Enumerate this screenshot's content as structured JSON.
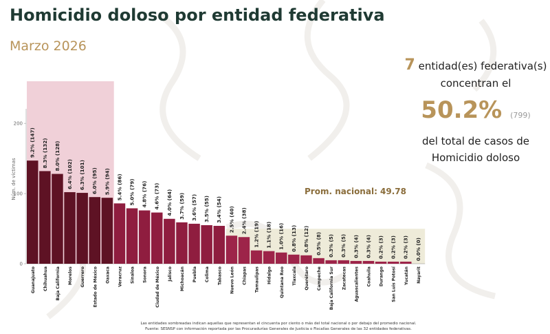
{
  "header": {
    "title": "Homicidio doloso por entidad federativa",
    "subtitle": "Marzo 2026"
  },
  "summary": {
    "count": "7",
    "count_text": "entidad(es) federativa(s)",
    "concentrate_text": "concentran el",
    "percent": "50.2%",
    "percent_cases": "(799)",
    "total_text": "del total de casos de",
    "crime_text": "Homicidio doloso"
  },
  "footnote": {
    "line1": "Las entidades sombreadas indican aquellas que representan el cincuenta por ciento o más del total nacional o por debajo del promedio nacional.",
    "line2": "Fuente: SESNSP con información reportada por las Procuradurías Generales de Justicia o Fiscalías Generales de las 32 entidades federativas."
  },
  "colors": {
    "bar_top": "#5e1224",
    "bar_mid": "#8f1d3f",
    "bar_low": "#9d2449",
    "highlight_top": "#f0d0d8",
    "highlight_low": "#eeebd9",
    "avg_label": "#8a6d3b",
    "axis": "#666666"
  },
  "chart_data": {
    "type": "bar",
    "ylabel": "Núm. de víctimas",
    "ylim": [
      0,
      260
    ],
    "yticks": [
      0,
      100,
      200
    ],
    "average": {
      "label": "Prom. nacional: 49.78",
      "value": 49.78
    },
    "top_group_count": 7,
    "categories": [
      "Guanajuato",
      "Chihuahua",
      "Baja California",
      "Morelos",
      "Guerrero",
      "Estado de México",
      "Oaxaca",
      "Veracruz",
      "Sinaloa",
      "Sonora",
      "Ciudad de México",
      "Jalisco",
      "Michoacán",
      "Puebla",
      "Colima",
      "Tabasco",
      "Nuevo León",
      "Chiapas",
      "Tamaulipas",
      "Hidalgo",
      "Quintana Roo",
      "Tlaxcala",
      "Querétaro",
      "Campeche",
      "Baja California Sur",
      "Zacatecas",
      "Aguascalientes",
      "Coahuila",
      "Durango",
      "San Luis Potosí",
      "Yucatán",
      "Nayarit"
    ],
    "values": [
      147,
      132,
      128,
      102,
      101,
      95,
      94,
      86,
      79,
      76,
      73,
      64,
      59,
      57,
      55,
      54,
      40,
      38,
      19,
      18,
      16,
      13,
      12,
      8,
      5,
      5,
      4,
      4,
      3,
      3,
      3,
      0
    ],
    "data_labels": [
      "9.2% (147)",
      "8.3% (132)",
      "8.0% (128)",
      "6.4% (102)",
      "6.3% (101)",
      "6.0% (95)",
      "5.9% (94)",
      "5.4% (86)",
      "5.0% (79)",
      "4.8% (76)",
      "4.6% (73)",
      "4.0% (64)",
      "3.7% (59)",
      "3.6% (57)",
      "3.5% (55)",
      "3.4% (54)",
      "2.5% (40)",
      "2.4% (38)",
      "1.2% (19)",
      "1.1% (18)",
      "1.0% (16)",
      "0.8% (13)",
      "0.8% (12)",
      "0.5% (8)",
      "0.3% (5)",
      "0.3% (5)",
      "0.3% (4)",
      "0.3% (4)",
      "0.2% (3)",
      "0.2% (3)",
      "0.2% (3)",
      "0.0% (0)"
    ]
  }
}
